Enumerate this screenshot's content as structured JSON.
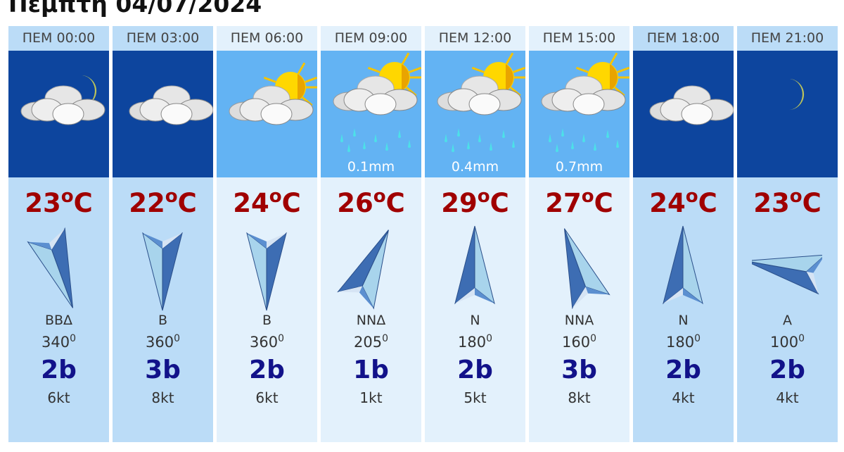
{
  "title": "Πέμπτη 04/07/2024",
  "colors": {
    "night_bg": "#0d459e",
    "day_bg": "#63b3f3",
    "temp": "#a00000",
    "beaufort": "#12128a"
  },
  "columns": [
    {
      "time": "ΠΕΜ 00:00",
      "period": "night",
      "icon": "cloud-moon",
      "rain": "",
      "temp": "23",
      "unit": "C",
      "dir": "ΒΒΔ",
      "deg": "340",
      "beaufort": "2b",
      "knots": "6kt"
    },
    {
      "time": "ΠΕΜ 03:00",
      "period": "night",
      "icon": "cloud",
      "rain": "",
      "temp": "22",
      "unit": "C",
      "dir": "Β",
      "deg": "360",
      "beaufort": "3b",
      "knots": "8kt"
    },
    {
      "time": "ΠΕΜ 06:00",
      "period": "day",
      "icon": "cloud-sun",
      "rain": "",
      "temp": "24",
      "unit": "C",
      "dir": "Β",
      "deg": "360",
      "beaufort": "2b",
      "knots": "6kt"
    },
    {
      "time": "ΠΕΜ 09:00",
      "period": "day",
      "icon": "cloud-sun-rain",
      "rain": "0.1mm",
      "temp": "26",
      "unit": "C",
      "dir": "ΝΝΔ",
      "deg": "205",
      "beaufort": "1b",
      "knots": "1kt"
    },
    {
      "time": "ΠΕΜ 12:00",
      "period": "day",
      "icon": "cloud-sun-rain",
      "rain": "0.4mm",
      "temp": "29",
      "unit": "C",
      "dir": "Ν",
      "deg": "180",
      "beaufort": "2b",
      "knots": "5kt"
    },
    {
      "time": "ΠΕΜ 15:00",
      "period": "day",
      "icon": "cloud-sun-rain",
      "rain": "0.7mm",
      "temp": "27",
      "unit": "C",
      "dir": "ΝΝΑ",
      "deg": "160",
      "beaufort": "3b",
      "knots": "8kt"
    },
    {
      "time": "ΠΕΜ 18:00",
      "period": "night",
      "icon": "cloud",
      "rain": "",
      "temp": "24",
      "unit": "C",
      "dir": "Ν",
      "deg": "180",
      "beaufort": "2b",
      "knots": "4kt"
    },
    {
      "time": "ΠΕΜ 21:00",
      "period": "night",
      "icon": "moon",
      "rain": "",
      "temp": "23",
      "unit": "C",
      "dir": "Α",
      "deg": "100",
      "beaufort": "2b",
      "knots": "4kt"
    }
  ]
}
